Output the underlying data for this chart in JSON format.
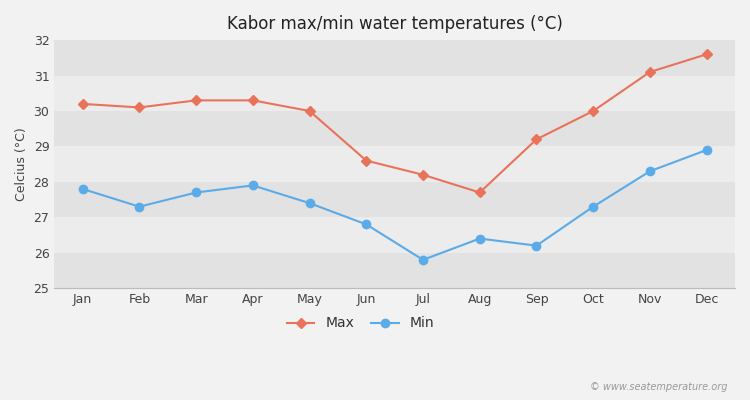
{
  "title": "Kabor max/min water temperatures (°C)",
  "ylabel": "Celcius (°C)",
  "months": [
    "Jan",
    "Feb",
    "Mar",
    "Apr",
    "May",
    "Jun",
    "Jul",
    "Aug",
    "Sep",
    "Oct",
    "Nov",
    "Dec"
  ],
  "max_temps": [
    30.2,
    30.1,
    30.3,
    30.3,
    30.0,
    28.6,
    28.2,
    27.7,
    29.2,
    30.0,
    31.1,
    31.6
  ],
  "min_temps": [
    27.8,
    27.3,
    27.7,
    27.9,
    27.4,
    26.8,
    25.8,
    26.4,
    26.2,
    27.3,
    28.3,
    28.9
  ],
  "max_color": "#e8735a",
  "min_color": "#5aabe8",
  "background_color": "#f2f2f2",
  "band_light": "#ececec",
  "band_dark": "#e2e2e2",
  "ylim": [
    25,
    32
  ],
  "yticks": [
    25,
    26,
    27,
    28,
    29,
    30,
    31,
    32
  ],
  "watermark": "© www.seatemperature.org",
  "legend_labels": [
    "Max",
    "Min"
  ]
}
